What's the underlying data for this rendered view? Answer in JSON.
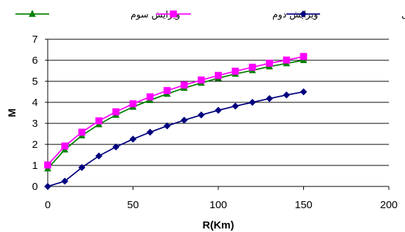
{
  "chart_data": {
    "type": "line",
    "xlabel": "R(Km)",
    "ylabel": "M",
    "xlim": [
      0,
      200
    ],
    "ylim": [
      0,
      7
    ],
    "xticks": [
      0,
      50,
      100,
      150,
      200
    ],
    "yticks": [
      0,
      1,
      2,
      3,
      4,
      5,
      6,
      7
    ],
    "grid": "horizontal",
    "legend_position": "top",
    "x": [
      0,
      10,
      20,
      30,
      40,
      50,
      60,
      70,
      80,
      90,
      100,
      110,
      120,
      130,
      140,
      150
    ],
    "series": [
      {
        "name": "ویرایش سوم",
        "color": "#008000",
        "marker": "triangle",
        "values": [
          0.85,
          1.75,
          2.42,
          2.95,
          3.4,
          3.78,
          4.1,
          4.4,
          4.68,
          4.92,
          5.15,
          5.35,
          5.52,
          5.7,
          5.85,
          6.0
        ]
      },
      {
        "name": "ویرایش دوم",
        "color": "#ff00ff",
        "marker": "square",
        "values": [
          1.02,
          1.92,
          2.58,
          3.12,
          3.55,
          3.93,
          4.26,
          4.56,
          4.82,
          5.06,
          5.28,
          5.48,
          5.67,
          5.86,
          6.01,
          6.18
        ]
      },
      {
        "name": "ویرایش اول",
        "color": "#000080",
        "marker": "diamond",
        "values": [
          0.0,
          0.25,
          0.9,
          1.45,
          1.88,
          2.25,
          2.58,
          2.88,
          3.15,
          3.4,
          3.62,
          3.82,
          4.0,
          4.18,
          4.35,
          4.5
        ]
      }
    ]
  }
}
